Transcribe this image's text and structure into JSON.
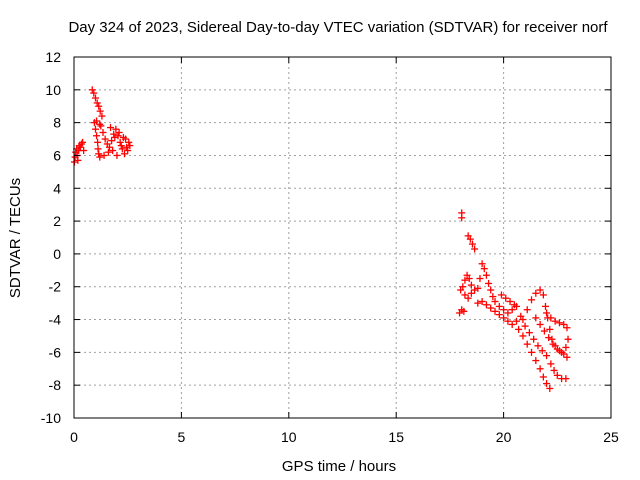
{
  "chart_data": {
    "type": "scatter",
    "title": "Day 324 of 2023, Sidereal Day-to-day VTEC variation (SDTVAR) for receiver norf",
    "xlabel": "GPS time / hours",
    "ylabel": "SDTVAR / TECUs",
    "xlim": [
      0,
      25
    ],
    "ylim": [
      -10,
      12
    ],
    "xticks": [
      0,
      5,
      10,
      15,
      20,
      25
    ],
    "yticks": [
      -10,
      -8,
      -6,
      -4,
      -2,
      0,
      2,
      4,
      6,
      8,
      10,
      12
    ],
    "grid": true,
    "marker": "plus",
    "color": "#ff0000",
    "series": [
      {
        "values": [
          [
            0.02,
            5.6
          ],
          [
            0.05,
            5.9
          ],
          [
            0.08,
            6.2
          ],
          [
            0.12,
            6.4
          ],
          [
            0.15,
            6.0
          ],
          [
            0.18,
            5.7
          ],
          [
            0.22,
            6.3
          ],
          [
            0.25,
            6.6
          ],
          [
            0.3,
            6.5
          ],
          [
            0.35,
            6.7
          ],
          [
            0.4,
            6.8
          ],
          [
            0.45,
            6.3
          ],
          [
            0.85,
            10.0
          ],
          [
            0.92,
            9.8
          ],
          [
            1.0,
            9.5
          ],
          [
            1.08,
            9.2
          ],
          [
            1.15,
            9.0
          ],
          [
            1.22,
            8.7
          ],
          [
            1.3,
            8.4
          ],
          [
            0.95,
            8.0
          ],
          [
            1.0,
            7.6
          ],
          [
            1.05,
            7.2
          ],
          [
            1.1,
            6.8
          ],
          [
            1.12,
            6.4
          ],
          [
            1.15,
            6.1
          ],
          [
            1.2,
            5.9
          ],
          [
            1.25,
            7.8
          ],
          [
            1.35,
            7.4
          ],
          [
            1.45,
            7.0
          ],
          [
            1.55,
            6.7
          ],
          [
            1.65,
            6.5
          ],
          [
            1.75,
            6.9
          ],
          [
            1.85,
            7.3
          ],
          [
            1.95,
            7.6
          ],
          [
            2.05,
            7.2
          ],
          [
            2.15,
            6.8
          ],
          [
            2.25,
            6.4
          ],
          [
            2.35,
            6.1
          ],
          [
            2.45,
            6.5
          ],
          [
            2.55,
            6.8
          ],
          [
            1.4,
            6.0
          ],
          [
            1.6,
            6.2
          ],
          [
            1.8,
            6.3
          ],
          [
            2.0,
            6.0
          ],
          [
            2.2,
            6.6
          ],
          [
            2.4,
            7.0
          ],
          [
            2.6,
            6.6
          ],
          [
            1.05,
            8.1
          ],
          [
            1.2,
            7.9
          ],
          [
            1.7,
            7.7
          ],
          [
            1.9,
            7.1
          ],
          [
            2.1,
            7.4
          ],
          [
            2.3,
            7.1
          ],
          [
            2.5,
            6.3
          ],
          [
            18.05,
            2.5
          ],
          [
            18.05,
            2.2
          ],
          [
            18.35,
            1.1
          ],
          [
            18.45,
            0.9
          ],
          [
            18.55,
            0.6
          ],
          [
            18.65,
            0.3
          ],
          [
            17.95,
            -3.6
          ],
          [
            18.05,
            -3.4
          ],
          [
            18.15,
            -3.5
          ],
          [
            18.0,
            -2.2
          ],
          [
            18.1,
            -2.0
          ],
          [
            18.2,
            -1.6
          ],
          [
            18.3,
            -1.3
          ],
          [
            18.4,
            -1.5
          ],
          [
            18.5,
            -1.9
          ],
          [
            18.2,
            -2.5
          ],
          [
            18.35,
            -2.7
          ],
          [
            18.5,
            -2.4
          ],
          [
            18.65,
            -2.2
          ],
          [
            18.8,
            -2.1
          ],
          [
            18.9,
            -1.5
          ],
          [
            19.0,
            -0.6
          ],
          [
            19.1,
            -0.9
          ],
          [
            19.2,
            -1.3
          ],
          [
            19.3,
            -1.8
          ],
          [
            19.4,
            -2.2
          ],
          [
            19.5,
            -2.6
          ],
          [
            18.8,
            -3.0
          ],
          [
            19.0,
            -2.9
          ],
          [
            19.2,
            -3.1
          ],
          [
            19.4,
            -3.3
          ],
          [
            19.6,
            -3.5
          ],
          [
            19.8,
            -3.7
          ],
          [
            20.0,
            -3.9
          ],
          [
            20.2,
            -4.1
          ],
          [
            20.4,
            -4.3
          ],
          [
            20.6,
            -4.1
          ],
          [
            20.8,
            -3.8
          ],
          [
            19.6,
            -2.9
          ],
          [
            19.8,
            -3.2
          ],
          [
            20.0,
            -3.4
          ],
          [
            20.2,
            -3.6
          ],
          [
            20.4,
            -3.4
          ],
          [
            20.6,
            -3.2
          ],
          [
            19.9,
            -2.5
          ],
          [
            20.1,
            -2.7
          ],
          [
            20.3,
            -2.9
          ],
          [
            20.5,
            -3.1
          ],
          [
            20.9,
            -4.0
          ],
          [
            21.1,
            -3.4
          ],
          [
            21.3,
            -2.8
          ],
          [
            21.5,
            -2.4
          ],
          [
            21.7,
            -2.2
          ],
          [
            21.85,
            -2.5
          ],
          [
            21.95,
            -3.2
          ],
          [
            22.05,
            -3.9
          ],
          [
            22.15,
            -4.6
          ],
          [
            22.25,
            -5.2
          ],
          [
            22.4,
            -5.6
          ],
          [
            22.6,
            -5.9
          ],
          [
            22.8,
            -6.1
          ],
          [
            22.95,
            -6.3
          ],
          [
            20.7,
            -4.6
          ],
          [
            20.9,
            -5.0
          ],
          [
            21.1,
            -5.5
          ],
          [
            21.3,
            -6.0
          ],
          [
            21.5,
            -6.5
          ],
          [
            21.7,
            -7.0
          ],
          [
            21.85,
            -7.5
          ],
          [
            22.0,
            -7.9
          ],
          [
            22.15,
            -8.2
          ],
          [
            21.0,
            -4.4
          ],
          [
            21.2,
            -4.8
          ],
          [
            21.4,
            -5.2
          ],
          [
            21.6,
            -5.6
          ],
          [
            21.8,
            -5.9
          ],
          [
            22.0,
            -6.2
          ],
          [
            22.2,
            -6.7
          ],
          [
            22.35,
            -7.1
          ],
          [
            22.5,
            -7.4
          ],
          [
            22.7,
            -7.6
          ],
          [
            22.9,
            -7.6
          ],
          [
            21.5,
            -3.9
          ],
          [
            21.7,
            -4.3
          ],
          [
            21.9,
            -4.7
          ],
          [
            22.1,
            -5.1
          ],
          [
            22.3,
            -5.5
          ],
          [
            22.5,
            -5.8
          ],
          [
            22.7,
            -6.0
          ],
          [
            22.9,
            -5.7
          ],
          [
            23.0,
            -5.2
          ],
          [
            22.0,
            -3.6
          ],
          [
            22.2,
            -3.9
          ],
          [
            22.4,
            -4.1
          ],
          [
            22.6,
            -4.2
          ],
          [
            22.8,
            -4.3
          ],
          [
            22.95,
            -4.5
          ]
        ]
      }
    ]
  }
}
